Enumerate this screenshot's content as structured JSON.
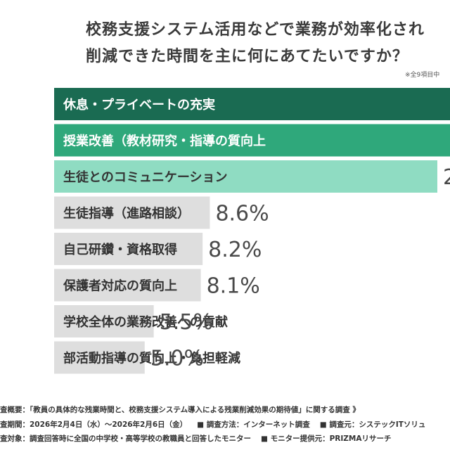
{
  "header": {
    "title_line1": "校務支援システム活用などで業務が効率化され",
    "title_line2": "削減できた時間を主に何にあてたいですか？",
    "note": "※全9項目中"
  },
  "colors": {
    "top1": "#1a6b52",
    "top2": "#2fa87b",
    "top3": "#8fdcc2",
    "rest": "#dedede",
    "value_text": "#4a4a4a",
    "label_dark": "#ffffff",
    "label_light": "#333333"
  },
  "chart_data": {
    "type": "bar",
    "orientation": "horizontal",
    "title": "校務支援システム活用などで業務が効率化され削減できた時間を主に何にあてたいですか？",
    "categories": [
      "休息・プライベートの充実",
      "授業改善（教材研究・指導の質向上",
      "生徒とのコミュニケーション",
      "生徒指導（進路相談）",
      "自己研鑽・資格取得",
      "保護者対応の質向上",
      "学校全体の業務改善への貢献",
      "部活動指導の質向上・負担軽減"
    ],
    "values": [
      null,
      null,
      null,
      8.6,
      8.2,
      8.1,
      5.5,
      5.0
    ],
    "value_labels": [
      "",
      "",
      "2",
      "8.6%",
      "8.2%",
      "8.1%",
      "5.5%",
      "5.0%"
    ],
    "xlabel": "",
    "ylabel": "",
    "grid": false,
    "legend": "none"
  },
  "footer": {
    "survey_overview": "査概要：「教員の具体的な残業時間と、校務支援システム導入による残業削減効果の期待値」に関する調査 》",
    "survey_period": "査期間：2026年2月4日（水）〜2026年2月6日（金）",
    "survey_method": "■ 調査方法：インターネット調査",
    "survey_source": "■ 調査元：システックITソリュ",
    "survey_target": "査対象：調査回答時に全国の中学校・高等学校の教職員と回答したモニター",
    "monitor_provider": "■ モニター提供元：PRIZMAリサーチ"
  }
}
